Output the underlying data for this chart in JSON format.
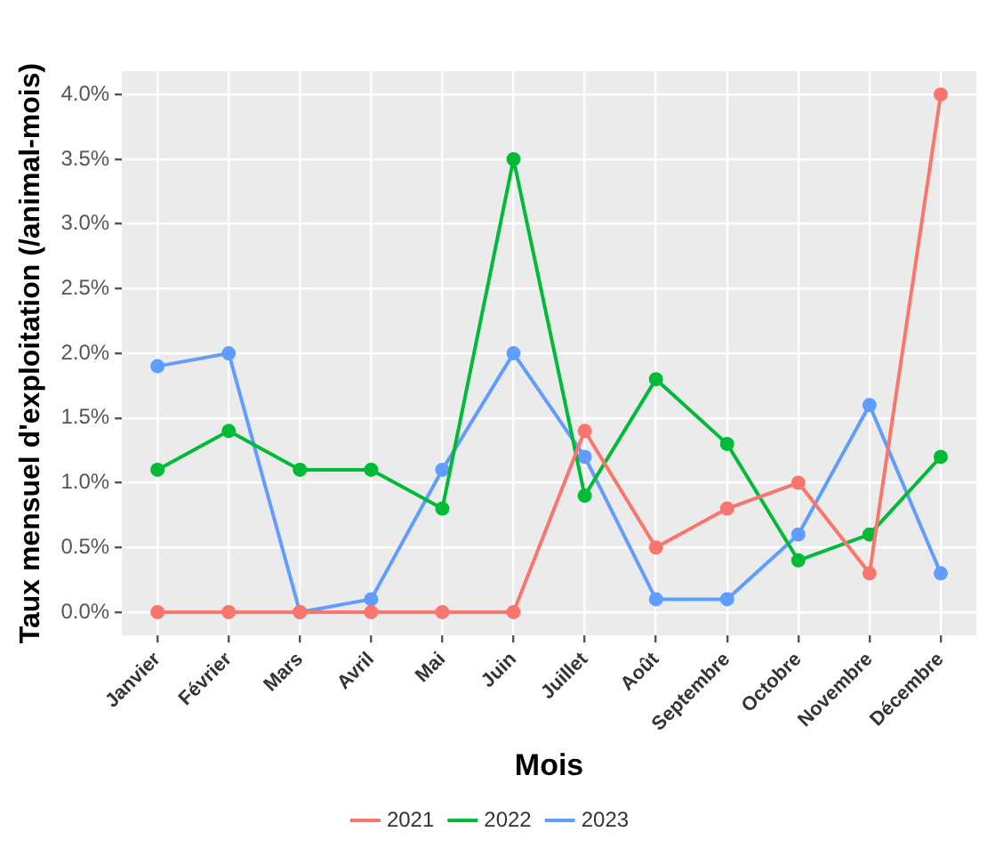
{
  "chart_data": {
    "type": "line",
    "xlabel": "Mois",
    "ylabel": "Taux mensuel d'exploitation (/animal-mois)",
    "categories": [
      "Janvier",
      "Février",
      "Mars",
      "Avril",
      "Mai",
      "Juin",
      "Juillet",
      "Août",
      "Septembre",
      "Octobre",
      "Novembre",
      "Décembre"
    ],
    "series": [
      {
        "name": "2021",
        "color": "#f8766d",
        "values": [
          0,
          0,
          0,
          0,
          0,
          0,
          1.4,
          0.5,
          0.8,
          1.0,
          0.3,
          4.0
        ]
      },
      {
        "name": "2022",
        "color": "#00ba38",
        "values": [
          1.1,
          1.4,
          1.1,
          1.1,
          0.8,
          3.5,
          0.9,
          1.8,
          1.3,
          0.4,
          0.6,
          1.2
        ]
      },
      {
        "name": "2023",
        "color": "#619cff",
        "values": [
          1.9,
          2.0,
          0.0,
          0.1,
          1.1,
          2.0,
          1.2,
          0.1,
          0.1,
          0.6,
          1.6,
          0.3
        ]
      }
    ],
    "ylim": [
      -0.18,
      4.18
    ],
    "yticks": [
      {
        "value": 0,
        "label": "0.0%"
      },
      {
        "value": 0.5,
        "label": "0.5%"
      },
      {
        "value": 1,
        "label": "1.0%"
      },
      {
        "value": 1.5,
        "label": "1.5%"
      },
      {
        "value": 2,
        "label": "2.0%"
      },
      {
        "value": 2.5,
        "label": "2.5%"
      },
      {
        "value": 3,
        "label": "3.0%"
      },
      {
        "value": 3.5,
        "label": "3.5%"
      },
      {
        "value": 4,
        "label": "4.0%"
      }
    ],
    "grid": true,
    "legend": "bottom",
    "marker": "circle",
    "line_style": "solid"
  }
}
